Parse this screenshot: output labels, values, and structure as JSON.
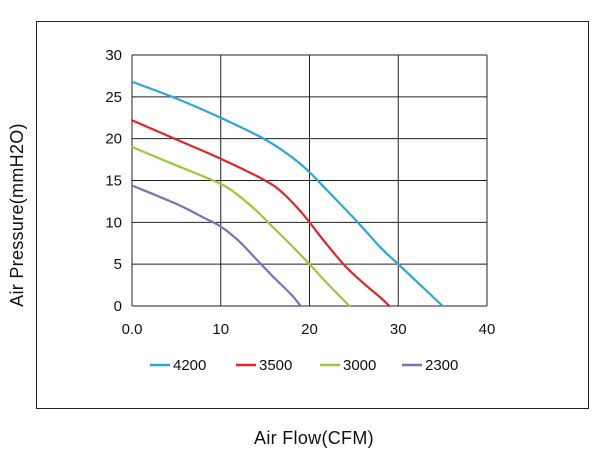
{
  "chart_data": {
    "type": "line",
    "title": "",
    "xlabel": "Air Flow(CFM)",
    "ylabel": "Air Pressure(mmH2O)",
    "xlim": [
      0,
      40
    ],
    "ylim": [
      0,
      30
    ],
    "x_ticks": [
      "0.0",
      "10",
      "20",
      "30",
      "40"
    ],
    "y_ticks": [
      "0",
      "5",
      "10",
      "15",
      "20",
      "25",
      "30"
    ],
    "grid": true,
    "legend_position": "bottom",
    "series": [
      {
        "name": "4200",
        "color": "#2aa7df",
        "points": [
          [
            0,
            26.8
          ],
          [
            5,
            24.8
          ],
          [
            10,
            22.5
          ],
          [
            15,
            19.9
          ],
          [
            18,
            17.8
          ],
          [
            20,
            16.0
          ],
          [
            22,
            13.8
          ],
          [
            25,
            10.5
          ],
          [
            28,
            7.0
          ],
          [
            30,
            5.0
          ],
          [
            32.5,
            2.5
          ],
          [
            35,
            0
          ]
        ]
      },
      {
        "name": "3500",
        "color": "#e0252b",
        "points": [
          [
            0,
            22.2
          ],
          [
            5,
            19.9
          ],
          [
            10,
            17.6
          ],
          [
            15,
            15.0
          ],
          [
            17,
            13.5
          ],
          [
            19,
            11.3
          ],
          [
            20,
            10.0
          ],
          [
            22,
            7.3
          ],
          [
            24,
            4.8
          ],
          [
            26,
            2.8
          ],
          [
            28,
            1.0
          ],
          [
            29,
            0
          ]
        ]
      },
      {
        "name": "3000",
        "color": "#9cc837",
        "points": [
          [
            0,
            19.0
          ],
          [
            5,
            16.8
          ],
          [
            10,
            14.6
          ],
          [
            12,
            13.2
          ],
          [
            14,
            11.4
          ],
          [
            16,
            9.3
          ],
          [
            18,
            7.2
          ],
          [
            20,
            5.0
          ],
          [
            22,
            2.7
          ],
          [
            24.5,
            0
          ]
        ]
      },
      {
        "name": "2300",
        "color": "#7a73b6",
        "points": [
          [
            0,
            14.4
          ],
          [
            5,
            12.2
          ],
          [
            8,
            10.6
          ],
          [
            10,
            9.5
          ],
          [
            12,
            7.8
          ],
          [
            14,
            5.6
          ],
          [
            16,
            3.4
          ],
          [
            18,
            1.3
          ],
          [
            19,
            0
          ]
        ]
      }
    ]
  }
}
